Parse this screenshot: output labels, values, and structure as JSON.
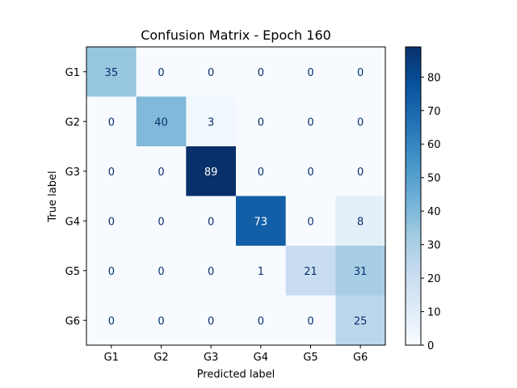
{
  "chart_data": {
    "type": "heatmap",
    "title": "Confusion Matrix - Epoch 160",
    "xlabel": "Predicted label",
    "ylabel": "True label",
    "x_categories": [
      "G1",
      "G2",
      "G3",
      "G4",
      "G5",
      "G6"
    ],
    "y_categories": [
      "G1",
      "G2",
      "G3",
      "G4",
      "G5",
      "G6"
    ],
    "values": [
      [
        35,
        0,
        0,
        0,
        0,
        0
      ],
      [
        0,
        40,
        3,
        0,
        0,
        0
      ],
      [
        0,
        0,
        89,
        0,
        0,
        0
      ],
      [
        0,
        0,
        0,
        73,
        0,
        8
      ],
      [
        0,
        0,
        0,
        1,
        21,
        31
      ],
      [
        0,
        0,
        0,
        0,
        0,
        25
      ]
    ],
    "colormap": "Blues",
    "colorbar": {
      "range": [
        0,
        89
      ],
      "ticks": [
        0,
        10,
        20,
        30,
        40,
        50,
        60,
        70,
        80
      ]
    },
    "grid": false
  }
}
